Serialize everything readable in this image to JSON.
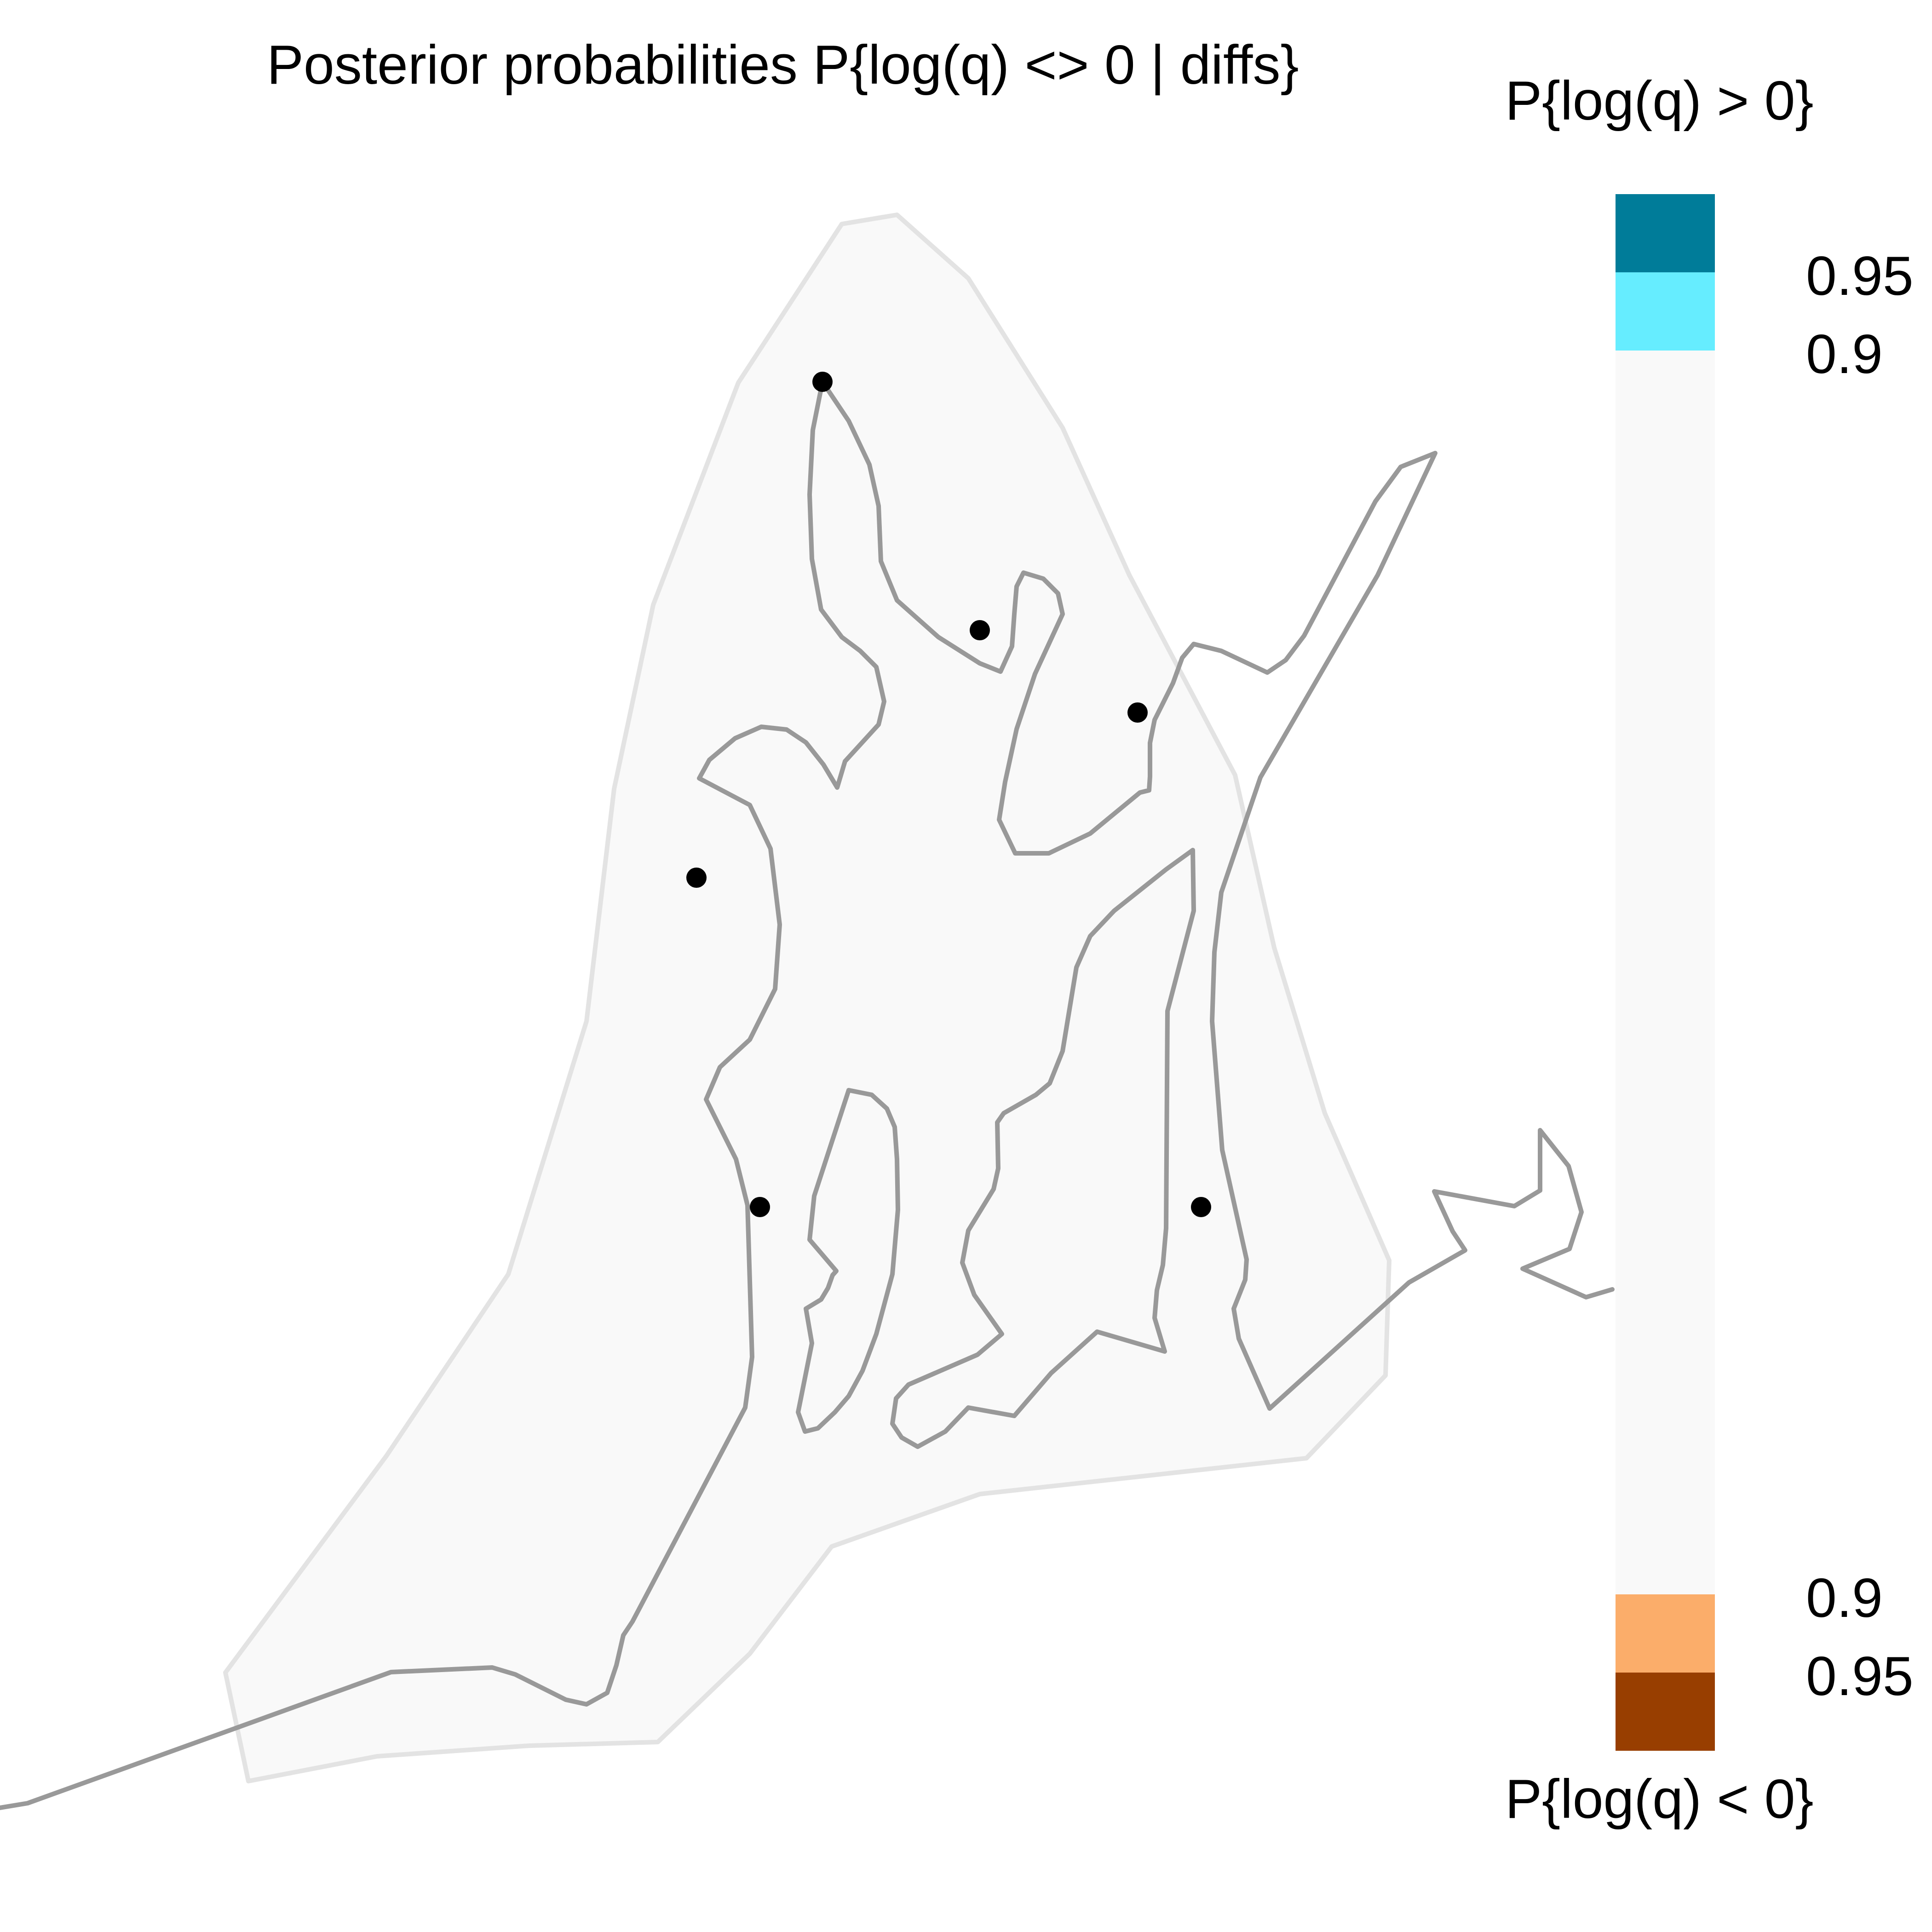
{
  "title": "Posterior probabilities P{log(q) <> 0 | diffs}",
  "legend": {
    "top_title": "P{log(q) > 0}",
    "bottom_title": "P{log(q) < 0}",
    "bands": [
      {
        "from": 0.95,
        "to": 1.0,
        "direction": "positive",
        "color": "#007C99"
      },
      {
        "from": 0.9,
        "to": 0.95,
        "direction": "positive",
        "color": "#66EDFF"
      },
      {
        "from": 0.0,
        "to": 0.9,
        "direction": "none",
        "color": "#F9F9F9"
      },
      {
        "from": 0.9,
        "to": 0.95,
        "direction": "negative",
        "color": "#FBAD6A"
      },
      {
        "from": 0.95,
        "to": 1.0,
        "direction": "negative",
        "color": "#983E00"
      }
    ],
    "labels": {
      "pos_95": "0.95",
      "pos_90": "0.9",
      "neg_90": "0.9",
      "neg_95": "0.95"
    }
  },
  "map": {
    "habitat_fill": "#F9F9F9",
    "habitat_outline_color": "#E3E3E3",
    "coastline_color": "#999999",
    "sample_point_color": "#000000",
    "sample_point_count": 6
  }
}
